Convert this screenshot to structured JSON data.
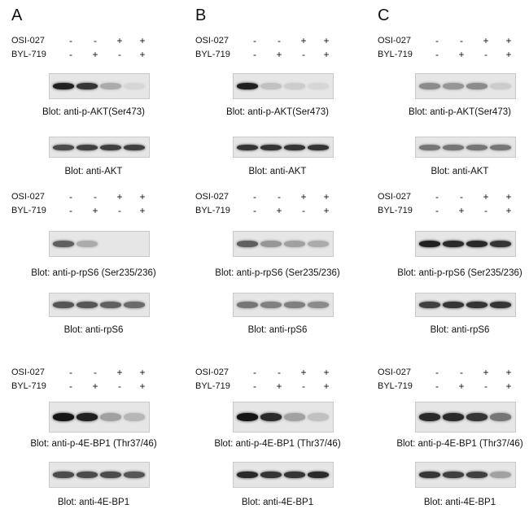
{
  "treatment_labels": [
    "OSI-027",
    "BYL-719"
  ],
  "sign_plus": "+",
  "sign_minus": "-",
  "panels": [
    {
      "letter": "A",
      "treatment_signs": {
        "OSI-027": [
          "-",
          "-",
          "+",
          "+"
        ],
        "BYL-719": [
          "-",
          "+",
          "-",
          "+"
        ]
      },
      "blots": [
        {
          "caption": "Blot: anti-p-AKT(Ser473)",
          "lane_intensity": [
            0.9,
            0.8,
            0.25,
            0.05
          ]
        },
        {
          "caption": "Blot: anti-AKT",
          "lane_intensity": [
            0.7,
            0.75,
            0.75,
            0.75
          ]
        },
        {
          "caption": "Blot: anti-p-rpS6 (Ser235/236)",
          "lane_intensity": [
            0.6,
            0.25,
            0.0,
            0.0
          ]
        },
        {
          "caption": "Blot: anti-rpS6",
          "lane_intensity": [
            0.65,
            0.65,
            0.6,
            0.55
          ]
        },
        {
          "caption": "Blot: anti-p-4E-BP1 (Thr37/46)",
          "lane_intensity": [
            0.95,
            0.9,
            0.3,
            0.2
          ]
        },
        {
          "caption": "Blot: anti-4E-BP1",
          "lane_intensity": [
            0.7,
            0.7,
            0.7,
            0.65
          ]
        }
      ]
    },
    {
      "letter": "B",
      "treatment_signs": {
        "OSI-027": [
          "-",
          "-",
          "+",
          "+"
        ],
        "BYL-719": [
          "-",
          "+",
          "-",
          "+"
        ]
      },
      "blots": [
        {
          "caption": "Blot: anti-p-AKT(Ser473)",
          "lane_intensity": [
            0.9,
            0.15,
            0.1,
            0.05
          ]
        },
        {
          "caption": "Blot: anti-AKT",
          "lane_intensity": [
            0.8,
            0.8,
            0.8,
            0.8
          ]
        },
        {
          "caption": "Blot: anti-p-rpS6 (Ser235/236)",
          "lane_intensity": [
            0.6,
            0.35,
            0.3,
            0.25
          ]
        },
        {
          "caption": "Blot: anti-rpS6",
          "lane_intensity": [
            0.5,
            0.45,
            0.45,
            0.4
          ]
        },
        {
          "caption": "Blot: anti-p-4E-BP1 (Thr37/46)",
          "lane_intensity": [
            0.95,
            0.85,
            0.3,
            0.15
          ]
        },
        {
          "caption": "Blot: anti-4E-BP1",
          "lane_intensity": [
            0.85,
            0.8,
            0.8,
            0.85
          ]
        }
      ]
    },
    {
      "letter": "C",
      "treatment_signs": {
        "OSI-027": [
          "-",
          "-",
          "+",
          "+"
        ],
        "BYL-719": [
          "-",
          "+",
          "-",
          "+"
        ]
      },
      "blots": [
        {
          "caption": "Blot: anti-p-AKT(Ser473)",
          "lane_intensity": [
            0.4,
            0.35,
            0.4,
            0.1
          ]
        },
        {
          "caption": "Blot: anti-AKT",
          "lane_intensity": [
            0.5,
            0.5,
            0.5,
            0.5
          ]
        },
        {
          "caption": "Blot: anti-p-rpS6 (Ser235/236)",
          "lane_intensity": [
            0.9,
            0.85,
            0.85,
            0.8
          ]
        },
        {
          "caption": "Blot: anti-rpS6",
          "lane_intensity": [
            0.75,
            0.8,
            0.8,
            0.8
          ]
        },
        {
          "caption": "Blot: anti-p-4E-BP1 (Thr37/46)",
          "lane_intensity": [
            0.85,
            0.85,
            0.8,
            0.5
          ]
        },
        {
          "caption": "Blot: anti-4E-BP1",
          "lane_intensity": [
            0.8,
            0.75,
            0.75,
            0.3
          ]
        }
      ]
    }
  ]
}
